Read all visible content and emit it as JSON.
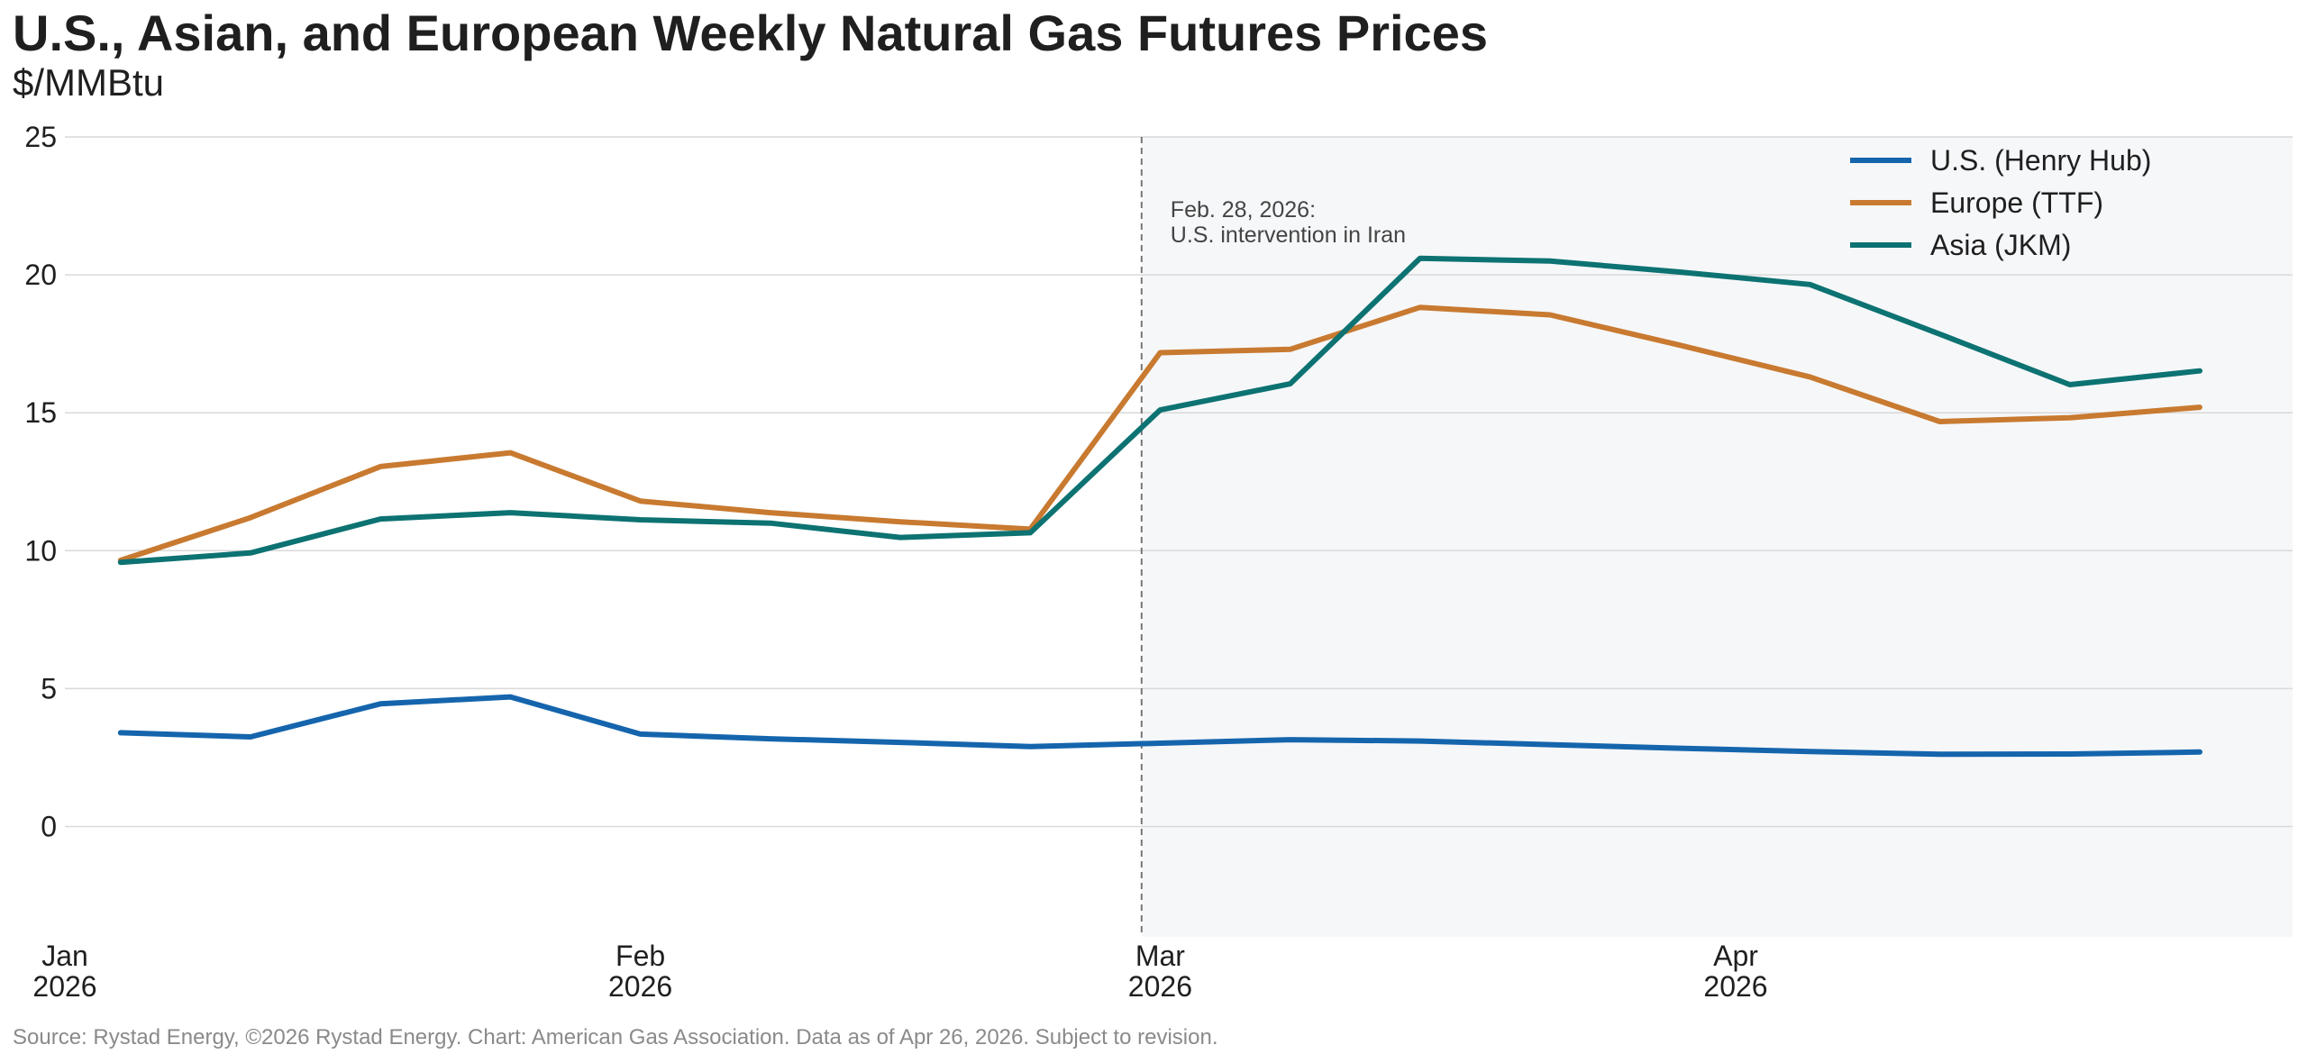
{
  "header": {
    "title": "U.S., Asian, and European Weekly Natural Gas Futures Prices",
    "subtitle": "$/MMBtu"
  },
  "footer": {
    "source": "Source: Rystad Energy, ©2026 Rystad Energy. Chart: American Gas Association. Data as of Apr 26, 2026. Subject to revision."
  },
  "chart_data": {
    "type": "line",
    "title": "U.S., Asian, and European Weekly Natural Gas Futures Prices",
    "ylabel": "$/MMBtu",
    "xlabel": "",
    "x": [
      "2026-01-04",
      "2026-01-11",
      "2026-01-18",
      "2026-01-25",
      "2026-02-01",
      "2026-02-08",
      "2026-02-15",
      "2026-02-22",
      "2026-03-01",
      "2026-03-08",
      "2026-03-15",
      "2026-03-22",
      "2026-03-29",
      "2026-04-05",
      "2026-04-12",
      "2026-04-19",
      "2026-04-26"
    ],
    "xlim": [
      "2026-01-01",
      "2026-05-01"
    ],
    "ylim": [
      -4,
      25
    ],
    "yticks": [
      0,
      5,
      10,
      15,
      20,
      25
    ],
    "xticks": [
      {
        "date": "2026-01-01",
        "label_line1": "Jan",
        "label_line2": "2026"
      },
      {
        "date": "2026-02-01",
        "label_line1": "Feb",
        "label_line2": "2026"
      },
      {
        "date": "2026-03-01",
        "label_line1": "Mar",
        "label_line2": "2026"
      },
      {
        "date": "2026-04-01",
        "label_line1": "Apr",
        "label_line2": "2026"
      }
    ],
    "grid": true,
    "legend_position": "top-right",
    "series": [
      {
        "name": "U.S. (Henry Hub)",
        "color": "#1565ad",
        "values": [
          3.4,
          3.25,
          4.45,
          4.7,
          3.35,
          3.18,
          3.05,
          2.9,
          3.02,
          3.15,
          3.1,
          2.97,
          2.84,
          2.72,
          2.62,
          2.63,
          2.7
        ]
      },
      {
        "name": "Europe (TTF)",
        "color": "#c87a30",
        "values": [
          9.65,
          11.2,
          13.05,
          13.55,
          11.8,
          11.38,
          11.05,
          10.78,
          17.18,
          17.3,
          18.82,
          18.55,
          17.45,
          16.3,
          14.68,
          14.82,
          15.2
        ]
      },
      {
        "name": "Asia (JKM)",
        "color": "#0d7272",
        "values": [
          9.58,
          9.92,
          11.15,
          11.38,
          11.12,
          11.0,
          10.48,
          10.65,
          15.1,
          16.05,
          20.6,
          20.5,
          20.1,
          19.65,
          17.85,
          16.02,
          16.52
        ]
      }
    ],
    "annotations": [
      {
        "date": "2026-02-28",
        "line1": "Feb. 28, 2026:",
        "line2": "U.S. intervention in Iran",
        "style": "dashed-vertical-line",
        "shade_after": true
      }
    ]
  },
  "colors": {
    "shade": "#f6f7f9",
    "grid": "#d9d9d9",
    "annotation_line": "#777777"
  }
}
